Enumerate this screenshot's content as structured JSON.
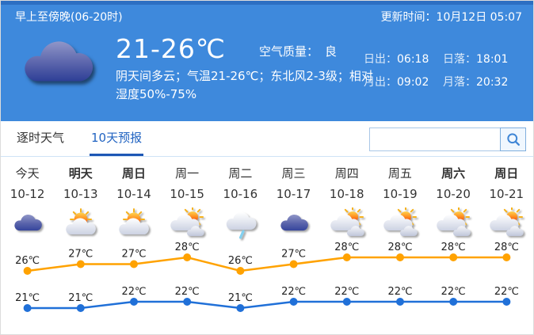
{
  "header": {
    "period_label": "早上至傍晚(06-20时)",
    "update_label": "更新时间：10月12日 05:07"
  },
  "current": {
    "icon": "overcast-cloud-icon",
    "temp_range": "21-26℃",
    "air_quality_label": "空气质量：",
    "air_quality_value": "良",
    "description": "阴天间多云；气温21-26℃；东北风2-3级；相对湿度50%-75%",
    "sun_moon": [
      {
        "label": "日出：",
        "value": "06:18"
      },
      {
        "label": "日落：",
        "value": "18:01"
      },
      {
        "label": "月出：",
        "value": "09:02"
      },
      {
        "label": "月落：",
        "value": "20:32"
      }
    ]
  },
  "tabs": [
    {
      "label": "逐时天气",
      "active": false
    },
    {
      "label": "10天预报",
      "active": true
    }
  ],
  "search": {
    "value": "",
    "placeholder": "",
    "button_icon": "search-icon"
  },
  "forecast": {
    "days": [
      {
        "label": "今天",
        "date": "10-12",
        "bold": false,
        "icon": "overcast"
      },
      {
        "label": "明天",
        "date": "10-13",
        "bold": true,
        "icon": "sun-cloud"
      },
      {
        "label": "周日",
        "date": "10-14",
        "bold": true,
        "icon": "sun-cloud"
      },
      {
        "label": "周一",
        "date": "10-15",
        "bold": false,
        "icon": "clouds-sun"
      },
      {
        "label": "周二",
        "date": "10-16",
        "bold": false,
        "icon": "rain"
      },
      {
        "label": "周三",
        "date": "10-17",
        "bold": false,
        "icon": "overcast"
      },
      {
        "label": "周四",
        "date": "10-18",
        "bold": false,
        "icon": "clouds-sun"
      },
      {
        "label": "周五",
        "date": "10-19",
        "bold": false,
        "icon": "clouds-sun"
      },
      {
        "label": "周六",
        "date": "10-20",
        "bold": true,
        "icon": "clouds-sun"
      },
      {
        "label": "周日",
        "date": "10-21",
        "bold": true,
        "icon": "clouds-sun"
      }
    ]
  },
  "chart_data": {
    "type": "line",
    "categories": [
      "10-12",
      "10-13",
      "10-14",
      "10-15",
      "10-16",
      "10-17",
      "10-18",
      "10-19",
      "10-20",
      "10-21"
    ],
    "series": [
      {
        "name": "high-temp",
        "unit": "℃",
        "color": "#ffa200",
        "values": [
          26,
          27,
          27,
          28,
          26,
          27,
          28,
          28,
          28,
          28
        ]
      },
      {
        "name": "low-temp",
        "unit": "℃",
        "color": "#2070d8",
        "values": [
          21,
          21,
          22,
          22,
          21,
          22,
          22,
          22,
          22,
          22
        ]
      }
    ],
    "legend_position": "none",
    "grid": false,
    "ylim": [
      20,
      29
    ]
  },
  "colors": {
    "header_blue": "#3e89dc",
    "top_strip_blue": "#2d6fc2",
    "active_tab_blue": "#2264c2",
    "high_line_orange": "#ffa200",
    "low_line_blue": "#2070d8",
    "label_text": "#222222"
  }
}
